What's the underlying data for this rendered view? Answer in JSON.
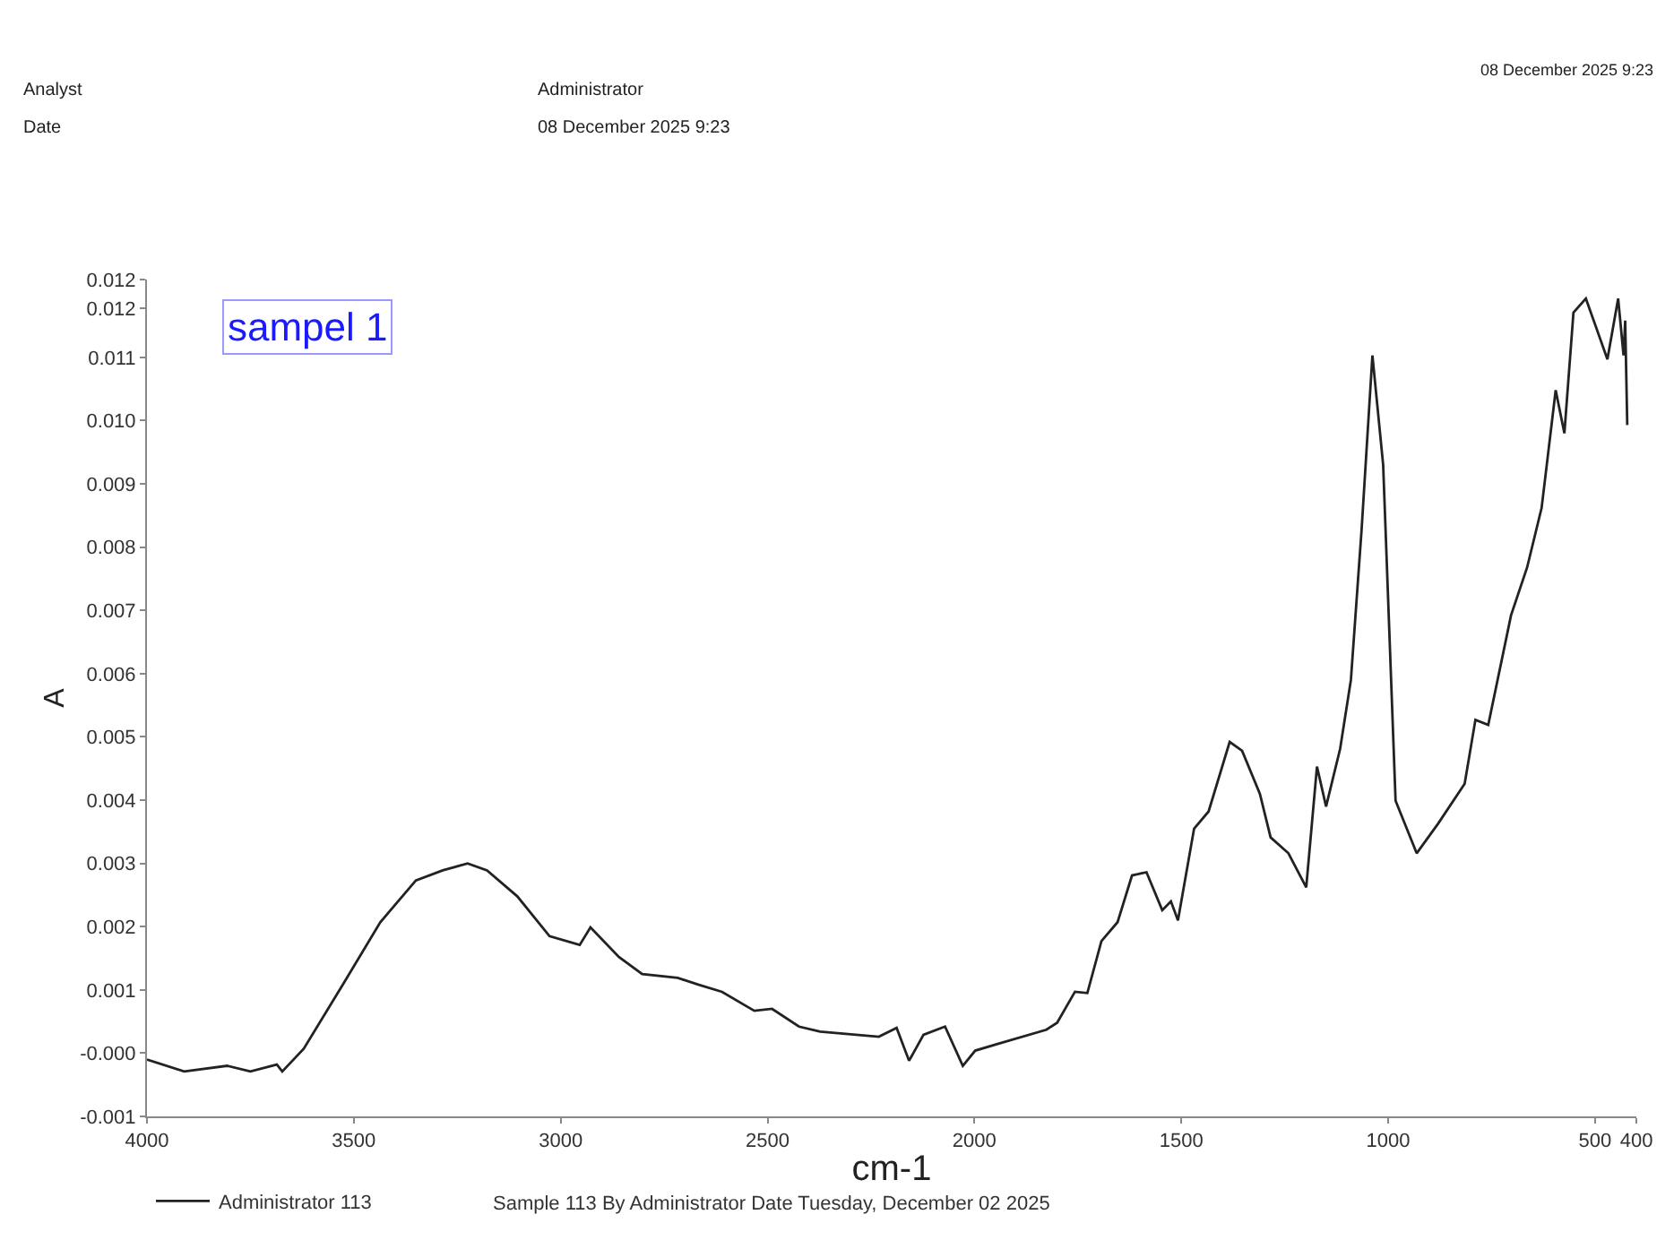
{
  "chart_data": {
    "type": "line",
    "xlabel": "cm-1",
    "ylabel": "A",
    "annotations": [
      "sampel 1",
      "Analyst",
      "Administrator",
      "Date",
      "08 December 2025 9:23",
      "08 December 2025 9:23",
      "Sample 113 By Administrator Date Tuesday, December 02 2025"
    ],
    "xlim": [
      4000,
      400
    ],
    "xticks": [
      4000,
      3500,
      3000,
      2500,
      2000,
      1500,
      1000,
      500,
      400
    ],
    "ylim": [
      -0.001,
      0.01223
    ],
    "yticks": [
      {
        "value": -0.001,
        "label": "-0.001"
      },
      {
        "value": 0,
        "label": "-0.000"
      },
      0.001,
      0.002,
      0.003,
      0.004,
      0.005,
      0.006,
      0.007,
      0.008,
      0.009,
      {
        "value": 0.01,
        "label": "0.010"
      },
      0.011,
      {
        "value": 0.01177,
        "label": "0.012"
      },
      {
        "value": 0.01223,
        "label": "0.012"
      }
    ],
    "legend": "bottom",
    "marker": "none",
    "line_style": "solid",
    "series": [
      {
        "name": "Administrator 113",
        "color": "#222222",
        "x": [
          4000,
          3910,
          3806,
          3750,
          3686,
          3673,
          3621,
          3527,
          3436,
          3350,
          3285,
          3225,
          3178,
          3105,
          3027,
          2954,
          2928,
          2859,
          2803,
          2717,
          2666,
          2610,
          2532,
          2489,
          2424,
          2373,
          2231,
          2188,
          2158,
          2123,
          2071,
          2028,
          1998,
          1942,
          1826,
          1800,
          1757,
          1727,
          1693,
          1654,
          1619,
          1584,
          1546,
          1525,
          1508,
          1469,
          1434,
          1383,
          1353,
          1310,
          1284,
          1241,
          1198,
          1172,
          1150,
          1116,
          1090,
          1064,
          1038,
          1012,
          982,
          931,
          879,
          815,
          789,
          758,
          703,
          664,
          629,
          595,
          574,
          552,
          522,
          470,
          444,
          431,
          427,
          422
        ],
        "values": [
          -0.0001,
          -0.00029,
          -0.0002,
          -0.00029,
          -0.00018,
          -0.00029,
          7e-05,
          0.00108,
          0.00207,
          0.00273,
          0.00289,
          0.003,
          0.00289,
          0.00248,
          0.00185,
          0.00171,
          0.00199,
          0.00152,
          0.00125,
          0.00119,
          0.00108,
          0.00097,
          0.00067,
          0.0007,
          0.00042,
          0.00034,
          0.00026,
          0.0004,
          -0.00012,
          0.00029,
          0.00042,
          -0.0002,
          4e-05,
          0.00015,
          0.00037,
          0.00048,
          0.00097,
          0.00095,
          0.00177,
          0.00207,
          0.00281,
          0.00286,
          0.00226,
          0.0024,
          0.0021,
          0.00355,
          0.00382,
          0.00492,
          0.00478,
          0.0041,
          0.00341,
          0.00316,
          0.00262,
          0.00453,
          0.0039,
          0.00481,
          0.0059,
          0.00829,
          0.01103,
          0.0093,
          0.00399,
          0.00316,
          0.00363,
          0.00426,
          0.00527,
          0.00519,
          0.00692,
          0.00768,
          0.00862,
          0.01048,
          0.0098,
          0.01171,
          0.01193,
          0.01097,
          0.01193,
          0.01103,
          0.01158,
          0.00993
        ]
      }
    ]
  }
}
